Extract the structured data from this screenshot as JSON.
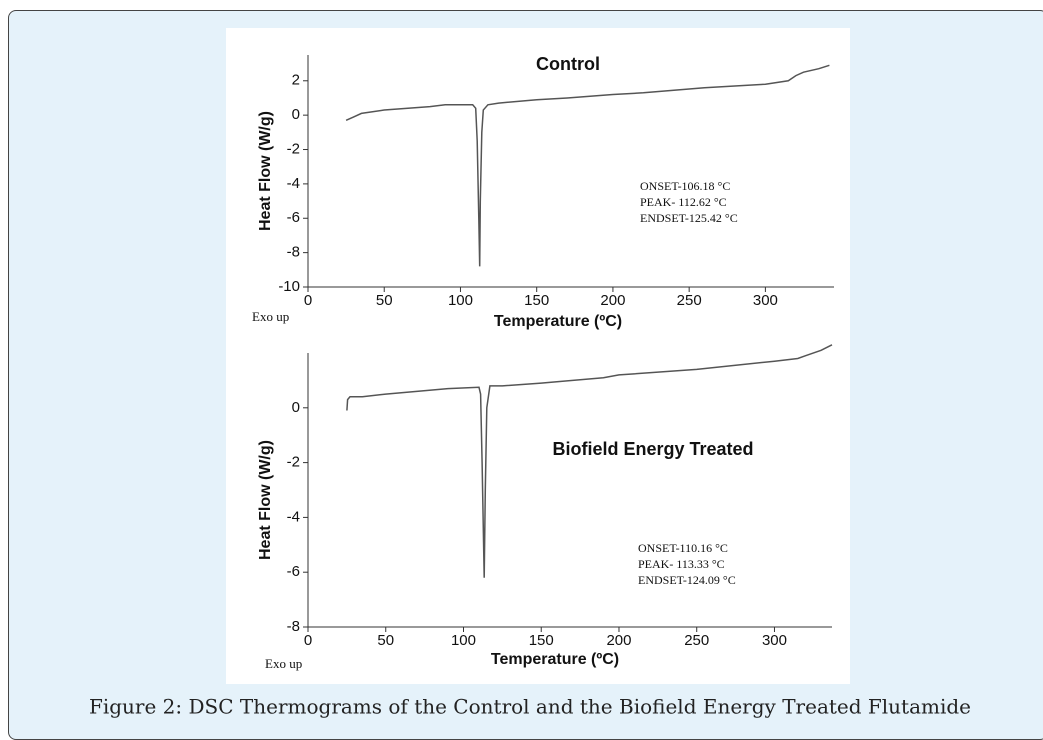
{
  "caption": "Figure 2: DSC Thermograms of the Control and the Biofield Energy Treated Flutamide",
  "chart_data": [
    {
      "type": "line",
      "title": "Control",
      "x_label": "Temperature (ºC)",
      "y_label": "Heat Flow (W/g)",
      "corner_label": "Exo up",
      "annotations": [
        "ONSET-106.18 °C",
        "PEAK- 112.62 °C",
        "ENDSET-125.42 °C"
      ],
      "color": "#555555",
      "x": [
        25,
        30,
        35,
        50,
        80,
        90,
        100,
        108,
        110,
        111,
        112,
        112.6,
        113,
        114,
        115,
        118,
        125,
        150,
        170,
        200,
        220,
        260,
        300,
        315,
        320,
        325,
        335,
        342
      ],
      "values": [
        -0.3,
        -0.1,
        0.1,
        0.3,
        0.5,
        0.6,
        0.6,
        0.6,
        0.4,
        -1.5,
        -6,
        -8.8,
        -5,
        -1,
        0.3,
        0.6,
        0.7,
        0.9,
        1.0,
        1.2,
        1.3,
        1.6,
        1.8,
        2.0,
        2.3,
        2.5,
        2.7,
        2.9
      ],
      "xlim": [
        0,
        345
      ],
      "ylim": [
        -10,
        3.5
      ],
      "xticks": [
        0,
        50,
        100,
        150,
        200,
        250,
        300
      ],
      "yticks": [
        -10,
        -8,
        -6,
        -4,
        -2,
        0,
        2
      ]
    },
    {
      "type": "line",
      "title": "Biofield Energy Treated",
      "x_label": "Temperature (ºC)",
      "y_label": "Heat Flow (W/g)",
      "corner_label": "Exo up",
      "annotations": [
        "ONSET-110.16 °C",
        "PEAK- 113.33 °C",
        "ENDSET-124.09 °C"
      ],
      "color": "#555555",
      "x": [
        25,
        25.5,
        27,
        35,
        50,
        90,
        110,
        111,
        112,
        113.3,
        114,
        115,
        117,
        125,
        150,
        190,
        200,
        250,
        300,
        315,
        320,
        330,
        337
      ],
      "values": [
        -0.1,
        0.3,
        0.4,
        0.4,
        0.5,
        0.7,
        0.75,
        0.5,
        -2,
        -6.2,
        -3,
        0,
        0.8,
        0.8,
        0.9,
        1.1,
        1.2,
        1.4,
        1.7,
        1.8,
        1.9,
        2.1,
        2.3
      ],
      "xlim": [
        0,
        337
      ],
      "ylim": [
        -8,
        2
      ],
      "xticks": [
        0,
        50,
        100,
        150,
        200,
        250,
        300
      ],
      "yticks": [
        -8,
        -6,
        -4,
        -2,
        0
      ]
    }
  ]
}
